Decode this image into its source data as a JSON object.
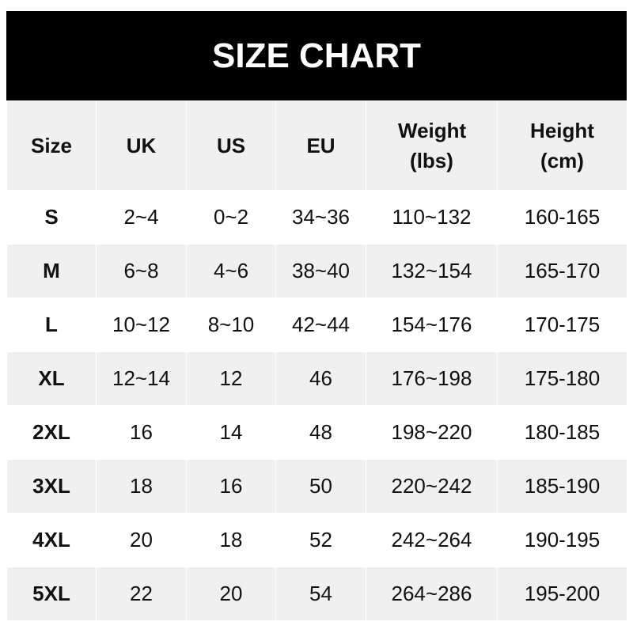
{
  "title": "SIZE CHART",
  "headers": [
    "Size",
    "UK",
    "US",
    "EU",
    "Weight (lbs)",
    "Height (cm)"
  ],
  "rows": [
    [
      "S",
      "2~4",
      "0~2",
      "34~36",
      "110~132",
      "160-165"
    ],
    [
      "M",
      "6~8",
      "4~6",
      "38~40",
      "132~154",
      "165-170"
    ],
    [
      "L",
      "10~12",
      "8~10",
      "42~44",
      "154~176",
      "170-175"
    ],
    [
      "XL",
      "12~14",
      "12",
      "46",
      "176~198",
      "175-180"
    ],
    [
      "2XL",
      "16",
      "14",
      "48",
      "198~220",
      "180-185"
    ],
    [
      "3XL",
      "18",
      "16",
      "50",
      "220~242",
      "185-190"
    ],
    [
      "4XL",
      "20",
      "18",
      "52",
      "242~264",
      "190-195"
    ],
    [
      "5XL",
      "22",
      "20",
      "54",
      "264~286",
      "195-200"
    ]
  ],
  "colors": {
    "title_bg": "#000000",
    "stripe": "#f0f0f0"
  }
}
